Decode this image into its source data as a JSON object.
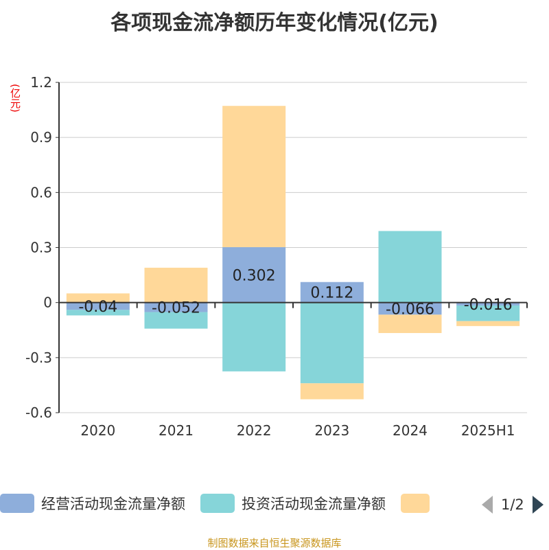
{
  "chart_data": {
    "type": "bar",
    "stacked": true,
    "title": "各项现金流净额历年变化情况(亿元)",
    "ylabel": "(亿元)",
    "categories": [
      "2020",
      "2021",
      "2022",
      "2023",
      "2024",
      "2025H1"
    ],
    "ylim": [
      -0.6,
      1.2
    ],
    "yticks": [
      "-0.6",
      "-0.3",
      "0",
      "0.3",
      "0.6",
      "0.9",
      "1.2"
    ],
    "grid": true,
    "legend_position": "bottom",
    "series": [
      {
        "name": "经营活动现金流量净额",
        "color": "#8eaedb",
        "values": [
          -0.04,
          -0.052,
          0.302,
          0.112,
          -0.066,
          -0.016
        ],
        "labels": [
          "-0.04",
          "-0.052",
          "0.302",
          "0.112",
          "-0.066",
          "-0.016"
        ]
      },
      {
        "name": "投资活动现金流量净额",
        "color": "#86d5d9",
        "values": [
          -0.03,
          -0.09,
          -0.375,
          -0.44,
          0.39,
          -0.085
        ]
      },
      {
        "name": "",
        "color": "#ffd899",
        "values": [
          0.05,
          0.19,
          0.77,
          -0.087,
          -0.1,
          -0.027
        ]
      }
    ]
  },
  "legend": {
    "page": "1/2"
  },
  "source": "制图数据来自恒生聚源数据库"
}
